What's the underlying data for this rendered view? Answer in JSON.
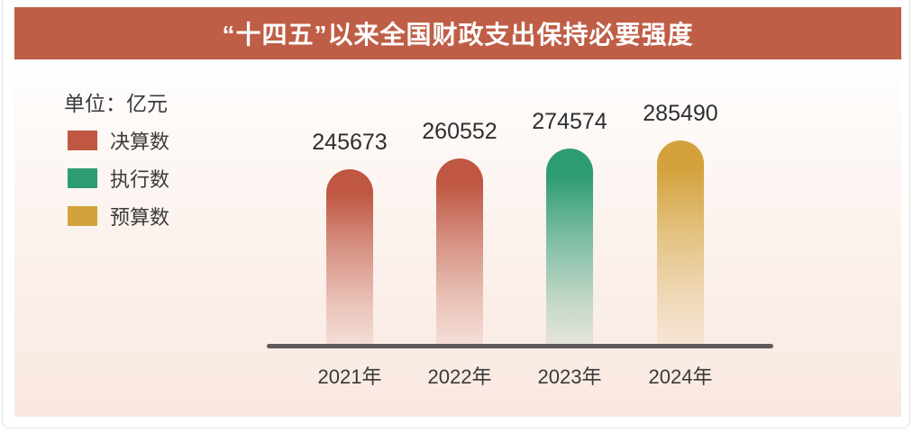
{
  "header": {
    "title": "“十四五”以来全国财政支出保持必要强度"
  },
  "legend": {
    "unit_label": "单位：亿元",
    "items": [
      {
        "name": "决算数",
        "color": "#bf5742"
      },
      {
        "name": "执行数",
        "color": "#2d9c73"
      },
      {
        "name": "预算数",
        "color": "#d3a23c"
      }
    ]
  },
  "chart_data": {
    "type": "bar",
    "title": "“十四五”以来全国财政支出保持必要强度",
    "unit": "亿元",
    "categories": [
      "2021年",
      "2022年",
      "2023年",
      "2024年"
    ],
    "values": [
      245673,
      260552,
      274574,
      285490
    ],
    "bar_series": [
      "决算数",
      "决算数",
      "执行数",
      "预算数"
    ],
    "series_colors": {
      "决算数": "#bf5742",
      "执行数": "#2d9c73",
      "预算数": "#d3a23c"
    },
    "data_labels": true,
    "grid": false,
    "legend_position": "upper-left",
    "xlabel": "",
    "ylabel": "",
    "ylim": [
      0,
      285490
    ],
    "axis_color": "#5e5b5b",
    "title_bar_color": "#bf5e46"
  }
}
